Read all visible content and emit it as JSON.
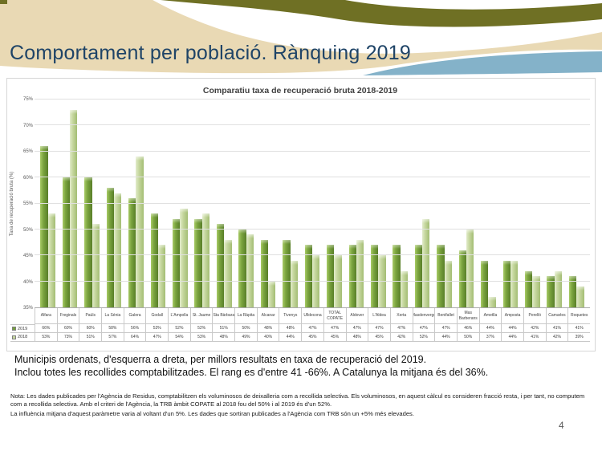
{
  "slide": {
    "title": "Comportament per població. Rànquing 2019",
    "page_number": "4"
  },
  "colors": {
    "title_blue": "#1f4467",
    "header_beige": "#e9d9b4",
    "header_olive": "#6f7024",
    "header_light_blue": "#84b2c9",
    "header_white": "#ffffff",
    "bar_2019": "#76a23d",
    "bar_2018": "#c6d79f"
  },
  "chart_data": {
    "type": "bar",
    "title": "Comparatiu taxa de recuperació bruta 2018-2019",
    "ylabel": "Taxa de recuperació bruta (%)",
    "xlabel": "",
    "ylim": [
      35,
      75
    ],
    "grid": true,
    "legend_position": "left-of-data-table",
    "y_ticks": [
      "75%",
      "70%",
      "65%",
      "60%",
      "55%",
      "50%",
      "45%",
      "40%",
      "35%"
    ],
    "categories": [
      "Alfara",
      "Freginals",
      "Paüls",
      "La Sénia",
      "Galera",
      "Godall",
      "L'Ampolla",
      "St. Jaume",
      "Sta Bàrbara",
      "La Ràpita",
      "Alcanar",
      "Tivenys",
      "Ulldecona",
      "TOTAL COPATE",
      "Aldover",
      "L'Aldea",
      "Xerta",
      "Masdenverge",
      "Benifallet",
      "Mas Barberans",
      "Ametlla",
      "Amposta",
      "Perelló",
      "Camarles",
      "Roquetes"
    ],
    "series": [
      {
        "name": "2019",
        "color": "#76a23d",
        "values": [
          66,
          60,
          60,
          58,
          56,
          53,
          52,
          52,
          51,
          50,
          48,
          48,
          47,
          47,
          47,
          47,
          47,
          47,
          47,
          46,
          44,
          44,
          42,
          41,
          41
        ]
      },
      {
        "name": "2018",
        "color": "#c6d79f",
        "values": [
          53,
          73,
          51,
          57,
          64,
          47,
          54,
          53,
          48,
          49,
          40,
          44,
          45,
          45,
          48,
          45,
          42,
          52,
          44,
          50,
          37,
          44,
          41,
          42,
          39
        ]
      }
    ]
  },
  "body": {
    "line1": "Municipis ordenats, d'esquerra a dreta, per millors resultats en taxa de recuperació del 2019.",
    "line2": "Inclou totes les recollides comptabilitzades. El rang es d'entre 41 -66%. A Catalunya la mitjana és del 36%."
  },
  "note": {
    "line1": "Nota: Les dades publicades per l'Agència de Residus, comptabilitzen els voluminosos de deixalleria com a recollida selectiva. Els voluminosos, en aquest càlcul es consideren fracció resta, i per tant, no computem com a recollida selectiva. Amb el criteri de l'Agència, la TRB  àmbit COPATE al 2018 fou del 50% i al 2019 és d'un 52%.",
    "line2": "La influència mitjana d'aquest paràmetre varia al voltant d'un 5%. Les dades que sortiran publicades a l'Agència com TRB són un +5% més elevades."
  }
}
